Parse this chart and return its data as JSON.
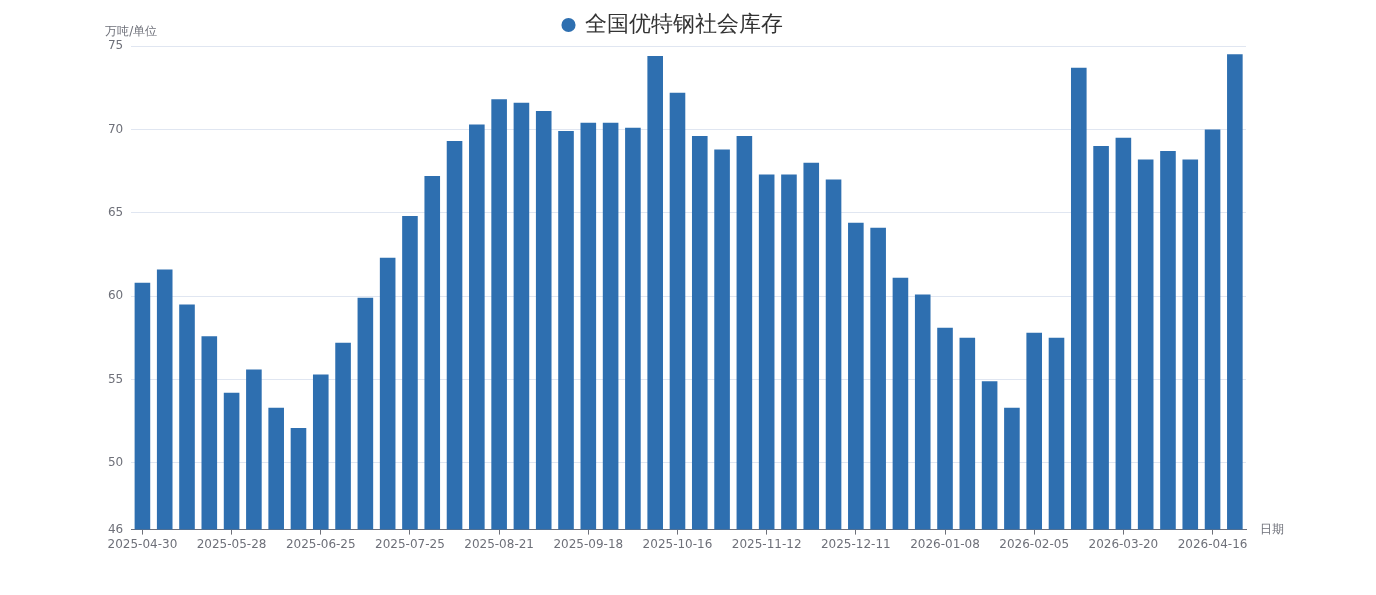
{
  "chart_data": {
    "type": "bar",
    "ylabel": "万吨/单位",
    "xlabel": "日期",
    "categories": [
      "2025-04-30",
      null,
      null,
      null,
      "2025-05-28",
      null,
      null,
      null,
      "2025-06-25",
      null,
      null,
      null,
      "2025-07-25",
      null,
      null,
      null,
      "2025-08-21",
      null,
      null,
      null,
      "2025-09-18",
      null,
      null,
      null,
      "2025-10-16",
      null,
      null,
      null,
      "2025-11-12",
      null,
      null,
      null,
      "2025-12-11",
      null,
      null,
      null,
      "2026-01-08",
      null,
      null,
      null,
      "2026-02-05",
      null,
      null,
      null,
      "2026-03-20",
      null,
      null,
      null,
      "2026-04-16",
      null
    ],
    "series": [
      {
        "name": "全国优特钢社会库存",
        "color": "#2e6fb0",
        "values": [
          60.8,
          61.6,
          59.5,
          57.6,
          54.2,
          55.6,
          53.3,
          52.1,
          55.3,
          57.2,
          59.9,
          62.3,
          64.8,
          67.2,
          69.3,
          70.3,
          71.8,
          71.6,
          71.1,
          69.9,
          70.4,
          70.4,
          70.1,
          74.4,
          72.2,
          69.6,
          68.8,
          69.6,
          67.3,
          67.3,
          68.0,
          67.0,
          64.4,
          64.1,
          61.1,
          60.1,
          58.1,
          57.5,
          54.9,
          53.3,
          57.8,
          57.5,
          73.7,
          69.0,
          69.5,
          68.2,
          68.7,
          68.2,
          70.0,
          74.5
        ]
      }
    ],
    "ylim": [
      46,
      75
    ],
    "yticks": [
      46,
      50,
      55,
      60,
      65,
      70,
      75
    ],
    "grid": "y",
    "legend": "top"
  }
}
